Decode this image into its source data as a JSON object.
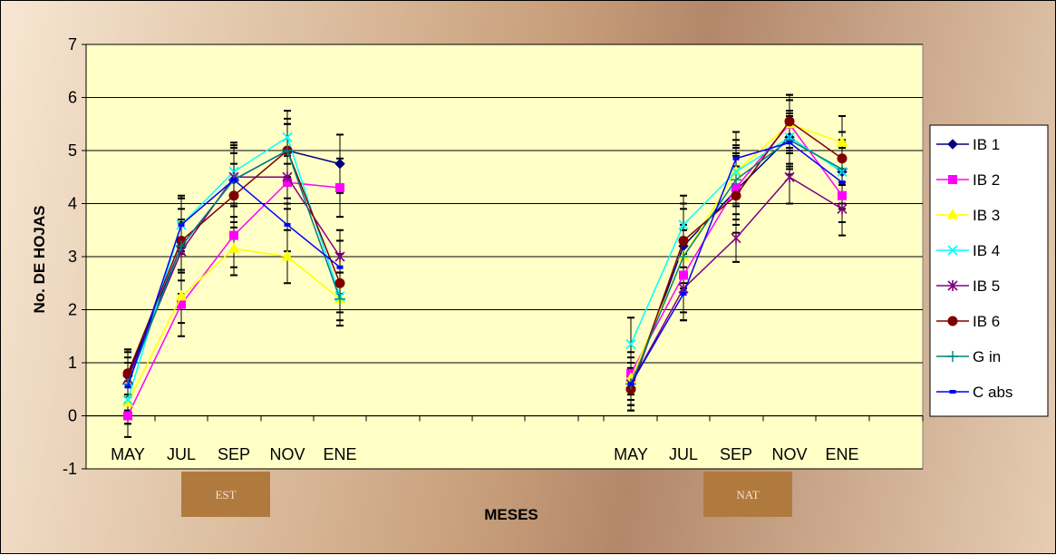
{
  "chart_data": {
    "type": "line",
    "xlabel": "MESES",
    "ylabel": "No. DE HOJAS",
    "ylim": [
      -1,
      7
    ],
    "yticks": [
      "-1",
      "0",
      "1",
      "2",
      "3",
      "4",
      "5",
      "6",
      "7"
    ],
    "grid": true,
    "legend_position": "right",
    "groups": [
      {
        "label": "EST",
        "categories": [
          "MAY",
          "JUL",
          "SEP",
          "NOV",
          "ENE"
        ]
      },
      {
        "label": "NAT",
        "categories": [
          "MAY",
          "JUL",
          "SEP",
          "NOV",
          "ENE"
        ]
      }
    ],
    "series": [
      {
        "name": "IB 1",
        "color": "#000080",
        "marker": "diamond",
        "values": [
          [
            0.75,
            3.2,
            4.45,
            5.0,
            4.75
          ],
          [
            0.5,
            3.2,
            4.25,
            5.25,
            4.6
          ]
        ],
        "err": [
          [
            0.5,
            0.9,
            0.7,
            0.6,
            0.55
          ],
          [
            0.4,
            0.8,
            0.8,
            0.7,
            0.6
          ]
        ]
      },
      {
        "name": "IB 2",
        "color": "#ff00ff",
        "marker": "square",
        "values": [
          [
            0.0,
            2.1,
            3.4,
            4.4,
            4.3
          ],
          [
            0.8,
            2.65,
            4.3,
            5.5,
            4.15
          ]
        ],
        "err": [
          [
            0.4,
            0.6,
            0.6,
            0.5,
            0.55
          ],
          [
            0.4,
            0.7,
            0.6,
            0.55,
            0.5
          ]
        ]
      },
      {
        "name": "IB 3",
        "color": "#ffff00",
        "marker": "triangle",
        "values": [
          [
            0.25,
            2.25,
            3.15,
            3.0,
            2.2
          ],
          [
            0.7,
            3.0,
            4.6,
            5.5,
            5.15
          ]
        ],
        "err": [
          [
            0.4,
            0.5,
            0.5,
            0.5,
            0.5
          ],
          [
            0.4,
            0.6,
            0.6,
            0.55,
            0.5
          ]
        ]
      },
      {
        "name": "IB 4",
        "color": "#00ffff",
        "marker": "x",
        "values": [
          [
            0.3,
            3.6,
            4.6,
            5.25,
            2.25
          ],
          [
            1.35,
            3.6,
            4.6,
            5.25,
            4.6
          ]
        ],
        "err": [
          [
            0.45,
            0.55,
            0.5,
            0.5,
            0.45
          ],
          [
            0.5,
            0.55,
            0.5,
            0.5,
            0.45
          ]
        ]
      },
      {
        "name": "IB 5",
        "color": "#800080",
        "marker": "star",
        "values": [
          [
            0.7,
            3.1,
            4.5,
            4.5,
            3.0
          ],
          [
            0.6,
            2.4,
            3.35,
            4.5,
            3.9
          ]
        ],
        "err": [
          [
            0.5,
            0.55,
            0.55,
            0.5,
            0.5
          ],
          [
            0.4,
            0.6,
            0.45,
            0.5,
            0.5
          ]
        ]
      },
      {
        "name": "IB 6",
        "color": "#800000",
        "marker": "circle",
        "values": [
          [
            0.8,
            3.3,
            4.15,
            5.0,
            2.5
          ],
          [
            0.5,
            3.3,
            4.15,
            5.55,
            4.85
          ]
        ],
        "err": [
          [
            0.45,
            0.6,
            0.6,
            0.5,
            0.55
          ],
          [
            0.4,
            0.6,
            0.55,
            0.5,
            0.5
          ]
        ]
      },
      {
        "name": "G in",
        "color": "#008080",
        "marker": "plus",
        "values": [
          [
            0.6,
            3.2,
            4.45,
            5.0,
            2.2
          ],
          [
            0.6,
            3.0,
            4.45,
            5.2,
            4.65
          ]
        ],
        "err": [
          [
            0.5,
            0.5,
            0.5,
            0.5,
            0.5
          ],
          [
            0.4,
            0.5,
            0.5,
            0.5,
            0.5
          ]
        ]
      },
      {
        "name": "C abs",
        "color": "#0000ff",
        "marker": "dash",
        "values": [
          [
            0.55,
            3.6,
            4.45,
            3.6,
            2.8
          ],
          [
            0.6,
            2.3,
            4.85,
            5.15,
            4.4
          ]
        ],
        "err": [
          [
            0.45,
            0.5,
            0.5,
            0.5,
            0.5
          ],
          [
            0.4,
            0.5,
            0.5,
            0.5,
            0.5
          ]
        ]
      }
    ]
  }
}
